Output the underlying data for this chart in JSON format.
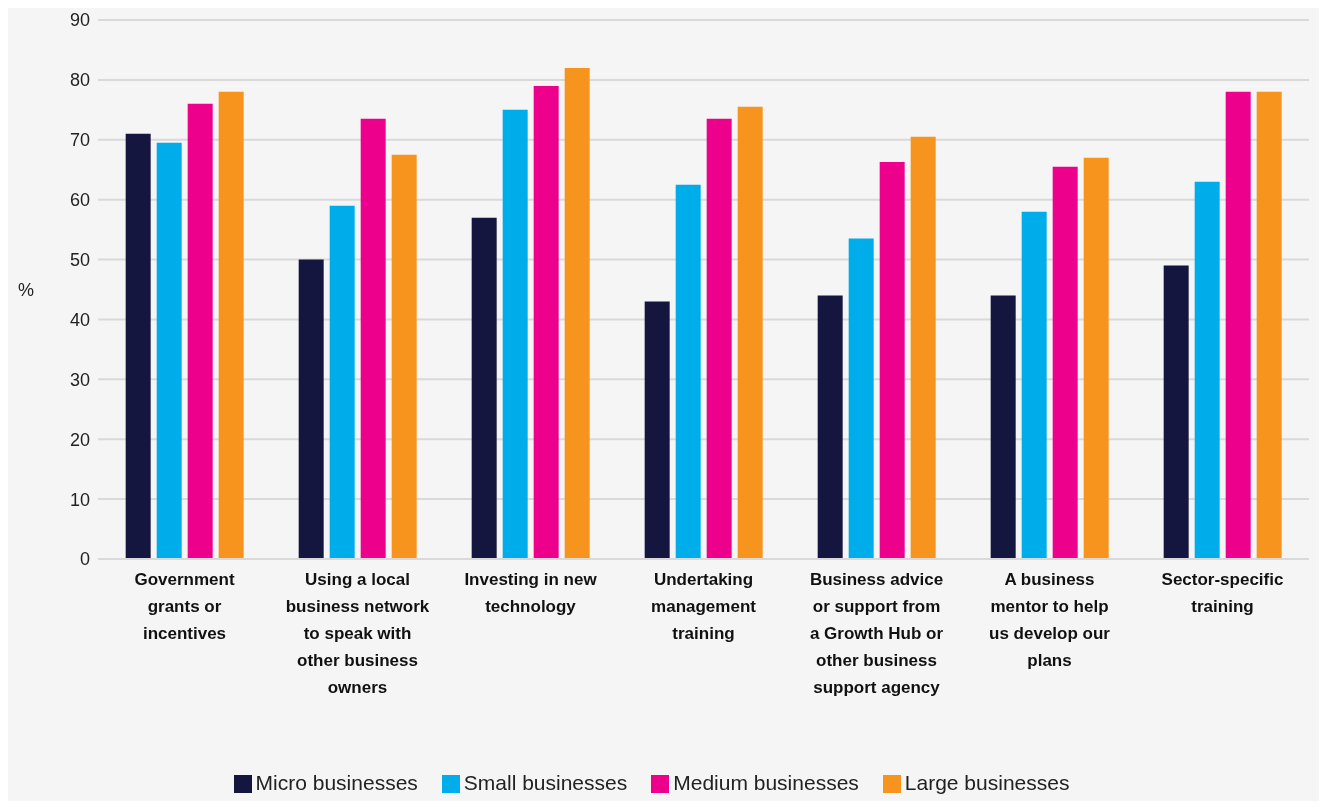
{
  "chart_data": {
    "type": "bar",
    "ylabel": "%",
    "categories": [
      "Government grants or incentives",
      "Using a local business network to speak with other business owners",
      "Investing in new technology",
      "Undertaking management training",
      "Business advice or support from a Growth Hub or other business support agency",
      "A business mentor to help us develop our plans",
      "Sector-specific training"
    ],
    "series": [
      {
        "name": "Micro businesses",
        "color": "#151640",
        "values": [
          71,
          50,
          57,
          43,
          44,
          44,
          49
        ]
      },
      {
        "name": "Small businesses",
        "color": "#00adeb",
        "values": [
          69.5,
          59,
          75,
          62.5,
          53.5,
          58,
          63
        ]
      },
      {
        "name": "Medium businesses",
        "color": "#ec008c",
        "values": [
          76,
          73.5,
          79,
          73.5,
          66.3,
          65.5,
          78
        ]
      },
      {
        "name": "Large businesses",
        "color": "#f7941e",
        "values": [
          78,
          67.5,
          82,
          75.5,
          70.5,
          67,
          78
        ]
      }
    ],
    "ylim": [
      0,
      90
    ],
    "yticks": [
      0,
      10,
      20,
      30,
      40,
      50,
      60,
      70,
      80,
      90
    ],
    "grid": "y",
    "legend": "bottom"
  }
}
